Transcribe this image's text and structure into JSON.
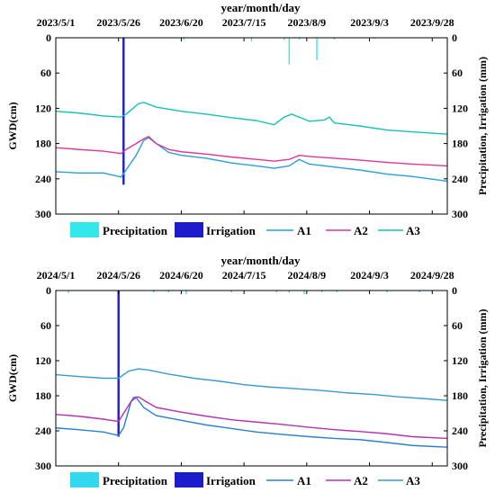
{
  "chart_data": [
    {
      "type": "line",
      "x_axis": {
        "label": "year/month/day",
        "tick_labels": [
          "2023/5/1",
          "2023/5/26",
          "2023/6/20",
          "2023/7/15",
          "2023/8/9",
          "2023/9/3",
          "2023/9/28"
        ],
        "range": [
          "2023-05-01",
          "2023-10-04"
        ]
      },
      "y_axis_left": {
        "label": "GWD(cm)",
        "ylim": [
          0,
          300
        ],
        "inverted": true,
        "tick_labels": [
          "0",
          "60",
          "120",
          "180",
          "240",
          "300"
        ]
      },
      "y_axis_right": {
        "label": "Precipitation, Irrigation (mm)",
        "ylim": [
          0,
          300
        ],
        "inverted": true,
        "tick_labels": [
          "0",
          "60",
          "120",
          "180",
          "240",
          "300"
        ]
      },
      "legend": {
        "position": "bottom",
        "entries": [
          "Precipitation",
          "Irrigation",
          "A1",
          "A2",
          "A3"
        ]
      },
      "grid": false,
      "colors": {
        "Precipitation": "#33e8e8",
        "Irrigation": "#1c1ccc",
        "A1": "#2a9fdc",
        "A2": "#e0359a",
        "A3": "#14c2b8"
      },
      "bars": [
        {
          "name": "Irrigation",
          "x": [
            "2023-05-28"
          ],
          "values": [
            250
          ]
        },
        {
          "name": "Precipitation",
          "x": [
            "2023-06-21",
            "2023-07-18",
            "2023-07-31",
            "2023-08-02",
            "2023-08-06",
            "2023-08-13",
            "2023-08-20",
            "2023-09-05"
          ],
          "values": [
            3,
            6,
            4,
            45,
            3,
            38,
            3,
            2
          ]
        }
      ],
      "series": [
        {
          "name": "A1",
          "x": [
            "2023-05-01",
            "2023-05-10",
            "2023-05-20",
            "2023-05-27",
            "2023-05-29",
            "2023-06-02",
            "2023-06-05",
            "2023-06-07",
            "2023-06-10",
            "2023-06-15",
            "2023-06-20",
            "2023-06-30",
            "2023-07-10",
            "2023-07-20",
            "2023-07-27",
            "2023-08-02",
            "2023-08-06",
            "2023-08-10",
            "2023-08-20",
            "2023-08-30",
            "2023-09-10",
            "2023-09-20",
            "2023-10-04"
          ],
          "values": [
            228,
            230,
            230,
            237,
            225,
            200,
            175,
            170,
            180,
            195,
            200,
            205,
            213,
            218,
            222,
            218,
            207,
            215,
            220,
            225,
            232,
            236,
            244
          ]
        },
        {
          "name": "A2",
          "x": [
            "2023-05-01",
            "2023-05-10",
            "2023-05-20",
            "2023-05-27",
            "2023-05-29",
            "2023-06-02",
            "2023-06-05",
            "2023-06-07",
            "2023-06-10",
            "2023-06-15",
            "2023-06-20",
            "2023-06-30",
            "2023-07-10",
            "2023-07-20",
            "2023-07-27",
            "2023-08-02",
            "2023-08-06",
            "2023-08-10",
            "2023-08-20",
            "2023-08-30",
            "2023-09-10",
            "2023-09-20",
            "2023-10-04"
          ],
          "values": [
            187,
            190,
            193,
            197,
            190,
            180,
            172,
            168,
            180,
            190,
            194,
            198,
            203,
            207,
            210,
            207,
            200,
            202,
            205,
            208,
            212,
            215,
            218
          ]
        },
        {
          "name": "A3",
          "x": [
            "2023-05-01",
            "2023-05-10",
            "2023-05-20",
            "2023-05-27",
            "2023-05-29",
            "2023-06-03",
            "2023-06-05",
            "2023-06-10",
            "2023-06-20",
            "2023-06-30",
            "2023-07-10",
            "2023-07-20",
            "2023-07-27",
            "2023-07-31",
            "2023-08-03",
            "2023-08-10",
            "2023-08-16",
            "2023-08-18",
            "2023-08-20",
            "2023-08-30",
            "2023-09-10",
            "2023-09-20",
            "2023-10-04"
          ],
          "values": [
            125,
            128,
            133,
            135,
            130,
            112,
            110,
            118,
            125,
            130,
            136,
            141,
            148,
            135,
            130,
            142,
            140,
            135,
            145,
            150,
            157,
            160,
            164
          ]
        }
      ]
    },
    {
      "type": "line",
      "x_axis": {
        "label": "year/month/day",
        "tick_labels": [
          "2024/5/1",
          "2024/5/26",
          "2024/6/20",
          "2024/7/15",
          "2024/8/9",
          "2024/9/3",
          "2024/9/28"
        ],
        "range": [
          "2024-05-01",
          "2024-10-04"
        ]
      },
      "y_axis_left": {
        "label": "GWD(cm)",
        "ylim": [
          0,
          300
        ],
        "inverted": true,
        "tick_labels": [
          "0",
          "60",
          "120",
          "180",
          "240",
          "300"
        ]
      },
      "y_axis_right": {
        "label": "Precipitation, Irrigation (mm)",
        "ylim": [
          0,
          300
        ],
        "inverted": true,
        "tick_labels": [
          "0",
          "60",
          "120",
          "180",
          "240",
          "300"
        ]
      },
      "legend": {
        "position": "bottom",
        "entries": [
          "Precipitation",
          "Irrigation",
          "A1",
          "A2",
          "A3"
        ]
      },
      "grid": false,
      "colors": {
        "Precipitation": "#30d8f0",
        "Irrigation": "#1c1ccc",
        "A1": "#2a7fd4",
        "A2": "#b830b0",
        "A3": "#3a9ad0"
      },
      "bars": [
        {
          "name": "Irrigation",
          "x": [
            "2024-05-26"
          ],
          "values": [
            250
          ]
        },
        {
          "name": "Precipitation",
          "x": [
            "2024-05-06",
            "2024-06-09",
            "2024-06-15",
            "2024-06-22",
            "2024-07-10",
            "2024-07-28",
            "2024-08-02",
            "2024-08-08",
            "2024-08-15",
            "2024-08-21",
            "2024-09-10",
            "2024-09-23"
          ],
          "values": [
            4,
            3,
            3,
            6,
            3,
            3,
            4,
            6,
            3,
            3,
            3,
            3
          ]
        }
      ],
      "series": [
        {
          "name": "A1",
          "x": [
            "2024-05-01",
            "2024-05-10",
            "2024-05-20",
            "2024-05-26",
            "2024-05-28",
            "2024-05-31",
            "2024-06-02",
            "2024-06-05",
            "2024-06-10",
            "2024-06-20",
            "2024-06-30",
            "2024-07-10",
            "2024-07-20",
            "2024-07-30",
            "2024-08-10",
            "2024-08-20",
            "2024-08-30",
            "2024-09-10",
            "2024-09-20",
            "2024-10-04"
          ],
          "values": [
            235,
            238,
            242,
            248,
            235,
            190,
            183,
            200,
            214,
            222,
            230,
            236,
            242,
            246,
            250,
            253,
            255,
            260,
            265,
            268
          ]
        },
        {
          "name": "A2",
          "x": [
            "2024-05-01",
            "2024-05-10",
            "2024-05-20",
            "2024-05-26",
            "2024-05-28",
            "2024-06-01",
            "2024-06-03",
            "2024-06-06",
            "2024-06-10",
            "2024-06-20",
            "2024-06-30",
            "2024-07-10",
            "2024-07-20",
            "2024-07-30",
            "2024-08-10",
            "2024-08-20",
            "2024-08-30",
            "2024-09-10",
            "2024-09-20",
            "2024-10-04"
          ],
          "values": [
            212,
            215,
            220,
            224,
            210,
            183,
            182,
            190,
            200,
            208,
            215,
            221,
            225,
            229,
            234,
            238,
            241,
            245,
            250,
            253
          ]
        },
        {
          "name": "A3",
          "x": [
            "2024-05-01",
            "2024-05-10",
            "2024-05-20",
            "2024-05-26",
            "2024-05-30",
            "2024-06-03",
            "2024-06-07",
            "2024-06-15",
            "2024-06-25",
            "2024-07-05",
            "2024-07-15",
            "2024-07-25",
            "2024-08-05",
            "2024-08-15",
            "2024-08-25",
            "2024-09-05",
            "2024-09-15",
            "2024-09-25",
            "2024-10-04"
          ],
          "values": [
            144,
            147,
            150,
            150,
            138,
            134,
            136,
            143,
            150,
            155,
            161,
            165,
            168,
            171,
            175,
            178,
            182,
            185,
            188
          ]
        }
      ]
    }
  ]
}
